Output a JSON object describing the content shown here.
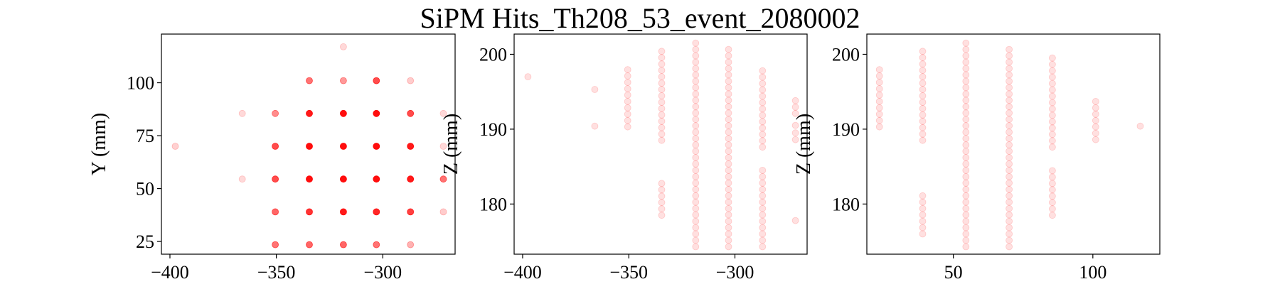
{
  "figure": {
    "title": "SiPM Hits_Th208_53_event_2080002"
  },
  "chart_data": [
    {
      "type": "scatter",
      "title": "",
      "xlabel": "",
      "ylabel": "Y (mm)",
      "xlim": [
        -404,
        -266
      ],
      "ylim": [
        19,
        123
      ],
      "xticks": [
        -400,
        -350,
        -300
      ],
      "yticks": [
        25,
        50,
        75,
        100
      ],
      "xtick_labels": [
        "−400",
        "−350",
        "−300"
      ],
      "ytick_labels": [
        "25",
        "50",
        "75",
        "100"
      ],
      "marker_color": "#ff0000",
      "points": [
        {
          "x": -397.5,
          "y": 70.0,
          "a": 0.18
        },
        {
          "x": -366.0,
          "y": 85.5,
          "a": 0.15
        },
        {
          "x": -366.0,
          "y": 54.5,
          "a": 0.15
        },
        {
          "x": -350.5,
          "y": 85.5,
          "a": 0.45
        },
        {
          "x": -350.5,
          "y": 70.0,
          "a": 0.7
        },
        {
          "x": -350.5,
          "y": 54.5,
          "a": 0.7
        },
        {
          "x": -350.5,
          "y": 39.0,
          "a": 0.6
        },
        {
          "x": -350.5,
          "y": 23.5,
          "a": 0.55
        },
        {
          "x": -334.5,
          "y": 101.0,
          "a": 0.55
        },
        {
          "x": -334.5,
          "y": 85.5,
          "a": 0.9
        },
        {
          "x": -334.5,
          "y": 70.0,
          "a": 0.95
        },
        {
          "x": -334.5,
          "y": 54.5,
          "a": 0.95
        },
        {
          "x": -334.5,
          "y": 39.0,
          "a": 0.8
        },
        {
          "x": -334.5,
          "y": 23.5,
          "a": 0.6
        },
        {
          "x": -318.5,
          "y": 117.0,
          "a": 0.15
        },
        {
          "x": -318.5,
          "y": 101.0,
          "a": 0.4
        },
        {
          "x": -318.5,
          "y": 85.5,
          "a": 0.95
        },
        {
          "x": -318.5,
          "y": 70.0,
          "a": 0.95
        },
        {
          "x": -318.5,
          "y": 54.5,
          "a": 0.95
        },
        {
          "x": -318.5,
          "y": 39.0,
          "a": 0.9
        },
        {
          "x": -318.5,
          "y": 23.5,
          "a": 0.6
        },
        {
          "x": -303.0,
          "y": 101.0,
          "a": 0.7
        },
        {
          "x": -303.0,
          "y": 85.5,
          "a": 0.95
        },
        {
          "x": -303.0,
          "y": 70.0,
          "a": 0.95
        },
        {
          "x": -303.0,
          "y": 54.5,
          "a": 0.95
        },
        {
          "x": -303.0,
          "y": 39.0,
          "a": 0.85
        },
        {
          "x": -303.0,
          "y": 23.5,
          "a": 0.55
        },
        {
          "x": -287.0,
          "y": 101.0,
          "a": 0.2
        },
        {
          "x": -287.0,
          "y": 85.5,
          "a": 0.7
        },
        {
          "x": -287.0,
          "y": 70.0,
          "a": 0.9
        },
        {
          "x": -287.0,
          "y": 54.5,
          "a": 0.9
        },
        {
          "x": -287.0,
          "y": 39.0,
          "a": 0.75
        },
        {
          "x": -287.0,
          "y": 23.5,
          "a": 0.3
        },
        {
          "x": -271.5,
          "y": 85.5,
          "a": 0.15
        },
        {
          "x": -271.5,
          "y": 70.0,
          "a": 0.15
        },
        {
          "x": -271.5,
          "y": 54.5,
          "a": 0.55
        },
        {
          "x": -271.5,
          "y": 39.0,
          "a": 0.2
        }
      ]
    },
    {
      "type": "scatter",
      "title": "",
      "xlabel": "",
      "ylabel": "Z (mm)",
      "xlim": [
        -404,
        -266
      ],
      "ylim": [
        173.3,
        202.7
      ],
      "xticks": [
        -400,
        -350,
        -300
      ],
      "yticks": [
        180,
        190,
        200
      ],
      "xtick_labels": [
        "−400",
        "−350",
        "−300"
      ],
      "ytick_labels": [
        "180",
        "190",
        "200"
      ],
      "marker_color": "#ff0000",
      "point_alpha": 0.12,
      "point_groups": [
        {
          "x": -397.5,
          "z": [
            197.0
          ]
        },
        {
          "x": -366.0,
          "z": [
            195.3,
            190.4
          ]
        },
        {
          "x": -350.5,
          "z_range": [
            190.3,
            198.6
          ]
        },
        {
          "x": -334.5,
          "z_range": [
            188.5,
            201.2
          ]
        },
        {
          "x": -334.5,
          "z_range": [
            178.5,
            182.8
          ]
        },
        {
          "x": -318.5,
          "z_range": [
            174.3,
            202.0
          ]
        },
        {
          "x": -303.0,
          "z_range": [
            174.3,
            201.2
          ]
        },
        {
          "x": -287.0,
          "z_range": [
            187.6,
            198.6
          ]
        },
        {
          "x": -287.0,
          "z_range": [
            174.3,
            185.0
          ]
        },
        {
          "x": -271.5,
          "z_range": [
            192.1,
            194.5
          ]
        },
        {
          "x": -271.5,
          "z": [
            190.5,
            189.5,
            188.6,
            177.8
          ]
        }
      ]
    },
    {
      "type": "scatter",
      "title": "",
      "xlabel": "",
      "ylabel": "Z (mm)",
      "xlim": [
        19,
        124
      ],
      "ylim": [
        173.3,
        202.7
      ],
      "xticks": [
        50,
        100
      ],
      "yticks": [
        180,
        190,
        200
      ],
      "xtick_labels": [
        "50",
        "100"
      ],
      "ytick_labels": [
        "180",
        "190",
        "200"
      ],
      "marker_color": "#ff0000",
      "point_alpha": 0.12,
      "point_groups": [
        {
          "x": 23.5,
          "z_range": [
            190.3,
            198.6
          ]
        },
        {
          "x": 39.0,
          "z_range": [
            188.5,
            201.2
          ]
        },
        {
          "x": 39.0,
          "z_range": [
            176.0,
            181.9
          ]
        },
        {
          "x": 54.5,
          "z_range": [
            174.3,
            202.0
          ]
        },
        {
          "x": 70.0,
          "z_range": [
            174.3,
            201.2
          ]
        },
        {
          "x": 85.5,
          "z_range": [
            187.6,
            200.3
          ]
        },
        {
          "x": 85.5,
          "z_range": [
            178.5,
            184.5
          ]
        },
        {
          "x": 101.0,
          "z_range": [
            188.6,
            194.5
          ]
        },
        {
          "x": 117.0,
          "z": [
            190.4
          ]
        }
      ]
    }
  ]
}
